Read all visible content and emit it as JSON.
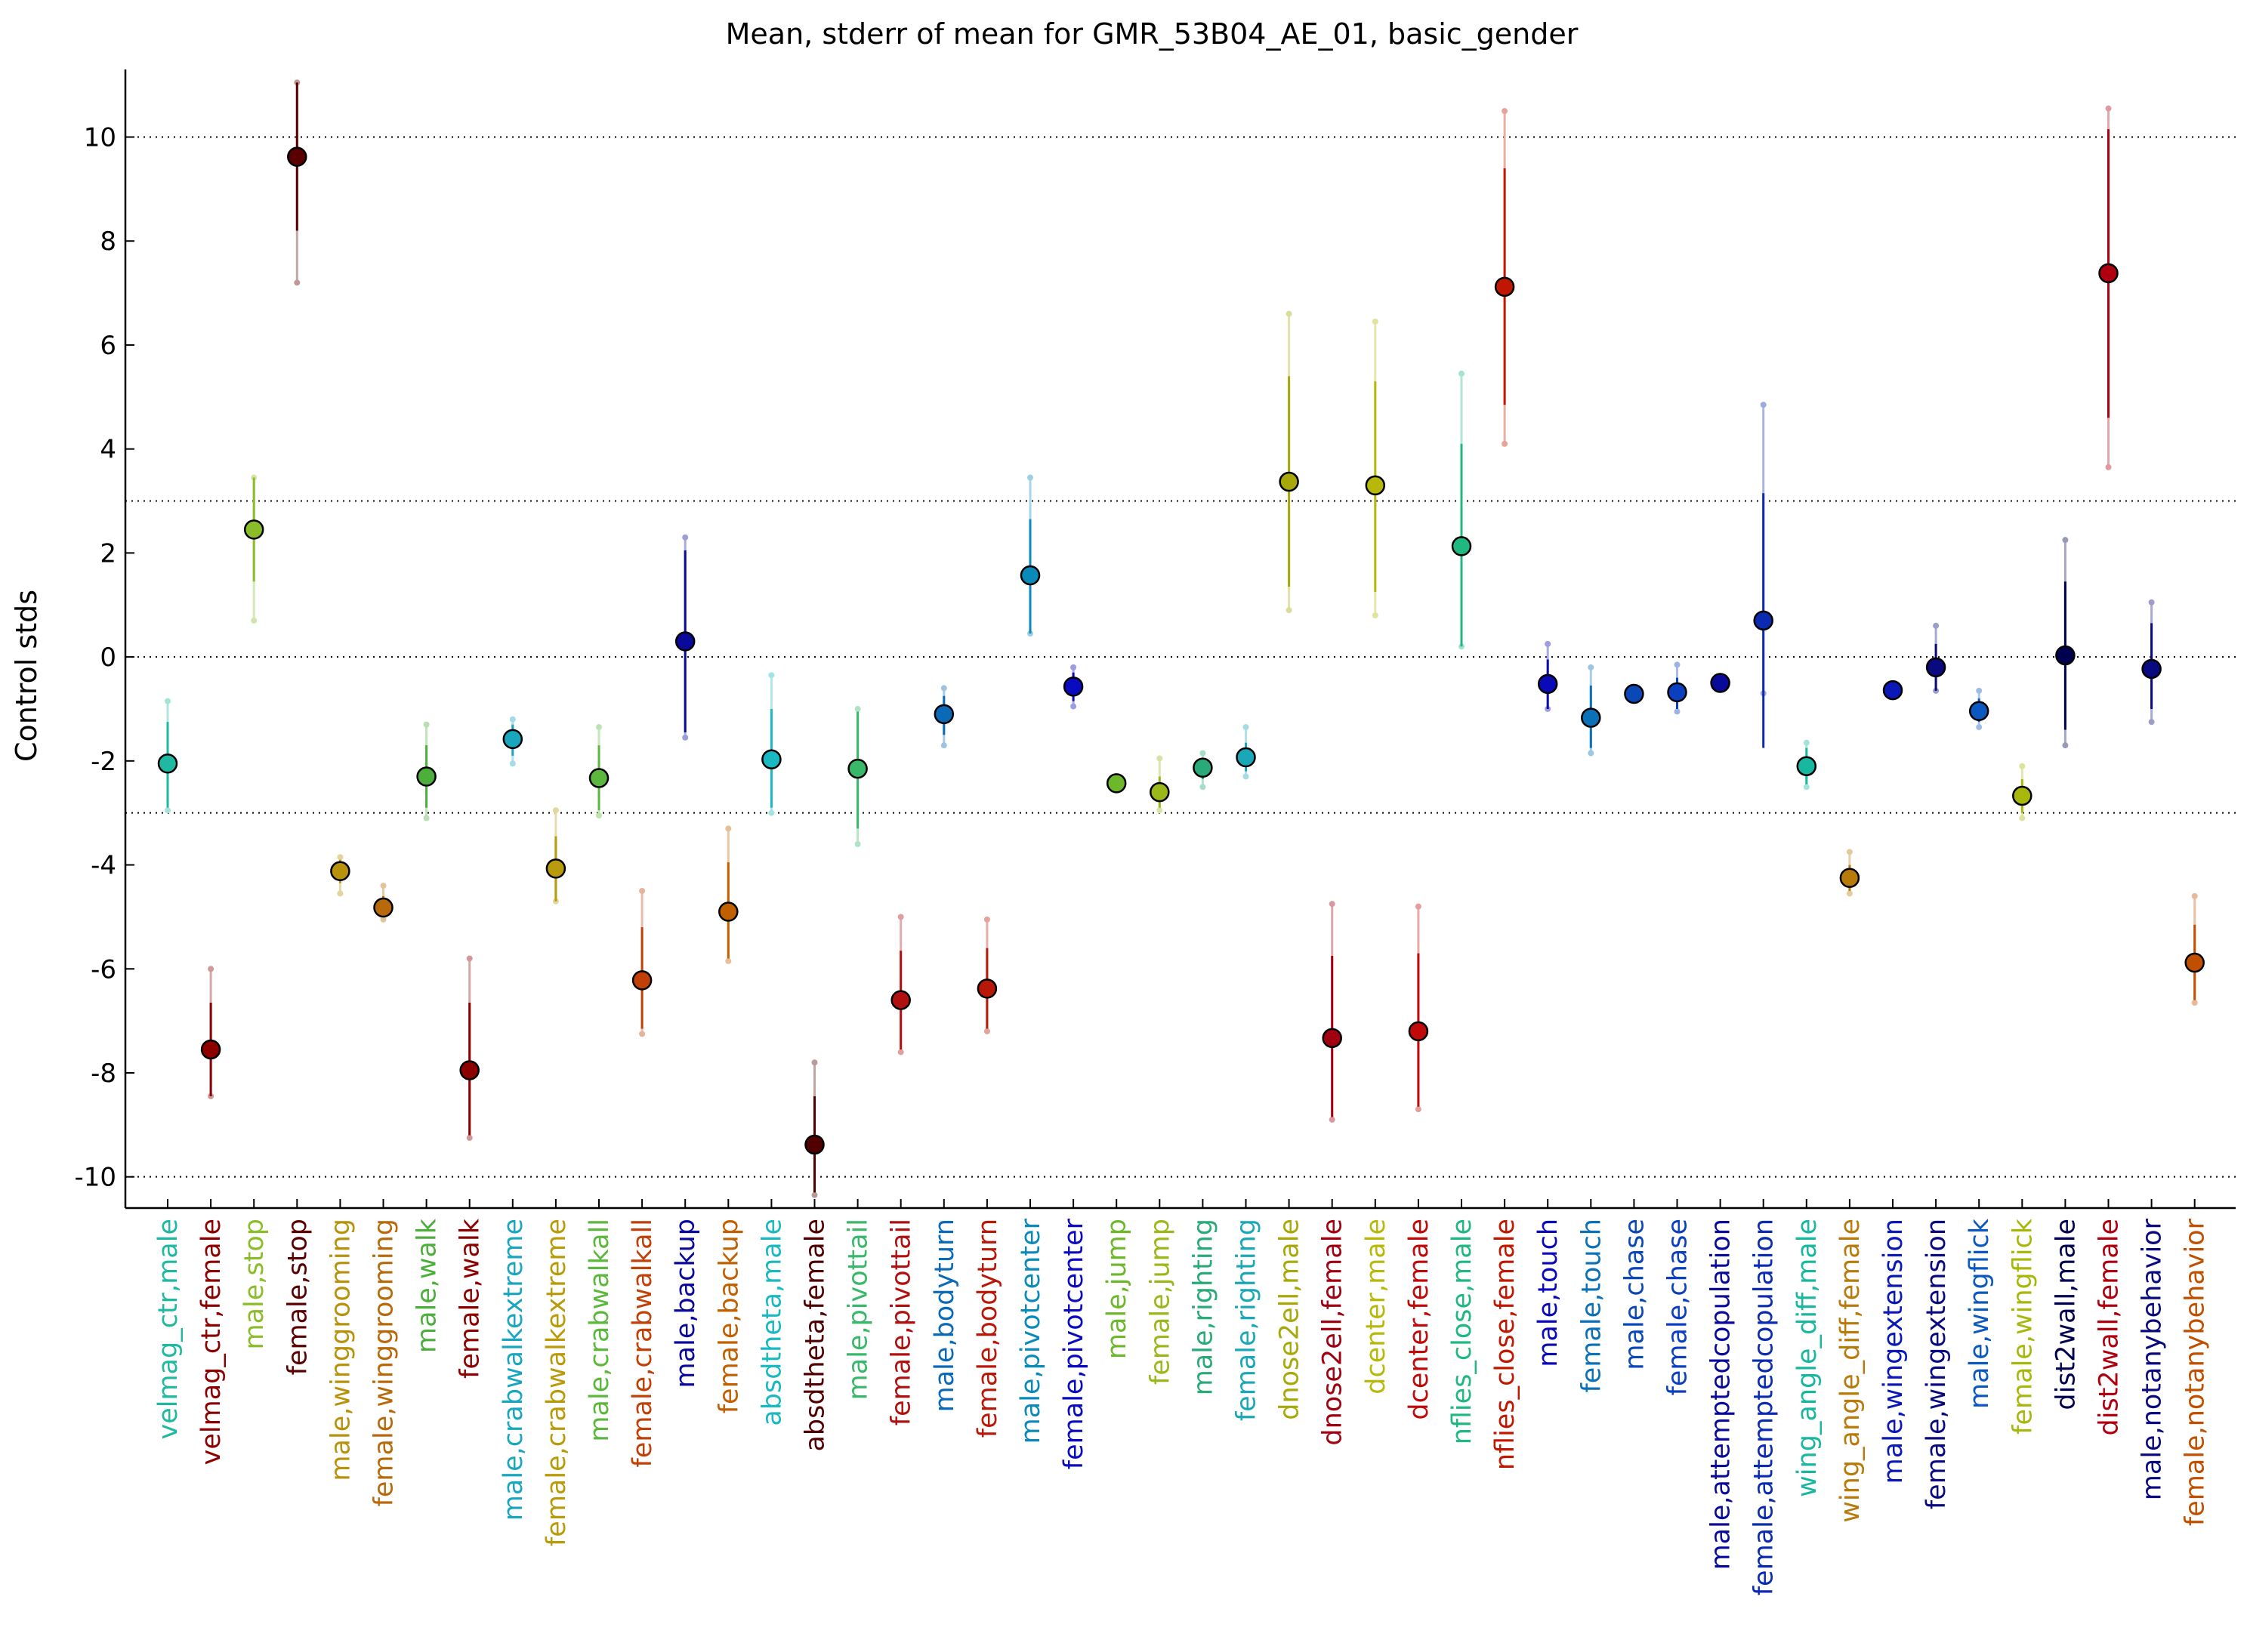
{
  "chart_data": {
    "type": "scatter",
    "title": "Mean, stderr of mean for GMR_53B04_AE_01, basic_gender",
    "xlabel": "",
    "ylabel": "Control stds",
    "ylim": [
      -10.6,
      11.3
    ],
    "yticks": [
      -10,
      -8,
      -6,
      -4,
      -2,
      0,
      2,
      4,
      6,
      8,
      10
    ],
    "ytick_labels": [
      "-10",
      "-8",
      "-6",
      "-4",
      "-2",
      "0",
      "2",
      "4",
      "6",
      "8",
      "10"
    ],
    "reference_lines": [
      -10,
      -3,
      0,
      3,
      10
    ],
    "grid": false,
    "legend": "none",
    "series": [
      {
        "label": "velmag_ctr,male",
        "mean": -2.05,
        "se_low": -2.9,
        "se_high": -1.25,
        "range": [
          -2.95,
          -0.85
        ],
        "color": "#1fb8a0"
      },
      {
        "label": "velmag_ctr,female",
        "mean": -7.55,
        "se_low": -8.45,
        "se_high": -6.65,
        "range": [
          -8.45,
          -6.0
        ],
        "color": "#8c0000"
      },
      {
        "label": "male,stop",
        "mean": 2.45,
        "se_low": 1.45,
        "se_high": 3.45,
        "range": [
          0.7,
          3.45
        ],
        "color": "#8bbd2a"
      },
      {
        "label": "female,stop",
        "mean": 9.62,
        "se_low": 8.2,
        "se_high": 11.05,
        "range": [
          7.2,
          11.05
        ],
        "color": "#5a0000"
      },
      {
        "label": "male,winggrooming",
        "mean": -4.12,
        "se_low": -4.35,
        "se_high": -3.9,
        "range": [
          -4.55,
          -3.85
        ],
        "color": "#b8920a"
      },
      {
        "label": "female,winggrooming",
        "mean": -4.82,
        "se_low": -5.0,
        "se_high": -4.6,
        "range": [
          -5.05,
          -4.4
        ],
        "color": "#b86a0a"
      },
      {
        "label": "male,walk",
        "mean": -2.3,
        "se_low": -2.9,
        "se_high": -1.7,
        "range": [
          -3.1,
          -1.3
        ],
        "color": "#4caf3c"
      },
      {
        "label": "female,walk",
        "mean": -7.95,
        "se_low": -9.2,
        "se_high": -6.65,
        "range": [
          -9.25,
          -5.8
        ],
        "color": "#8c0000"
      },
      {
        "label": "male,crabwalkextreme",
        "mean": -1.58,
        "se_low": -1.9,
        "se_high": -1.3,
        "range": [
          -2.05,
          -1.2
        ],
        "color": "#1ba6c0"
      },
      {
        "label": "female,crabwalkextreme",
        "mean": -4.07,
        "se_low": -4.7,
        "se_high": -3.45,
        "range": [
          -4.7,
          -2.95
        ],
        "color": "#b89a0a"
      },
      {
        "label": "male,crabwalkall",
        "mean": -2.33,
        "se_low": -2.95,
        "se_high": -1.7,
        "range": [
          -3.05,
          -1.35
        ],
        "color": "#5cb83c"
      },
      {
        "label": "female,crabwalkall",
        "mean": -6.22,
        "se_low": -7.15,
        "se_high": -5.2,
        "range": [
          -7.25,
          -4.5
        ],
        "color": "#c04008"
      },
      {
        "label": "male,backup",
        "mean": 0.3,
        "se_low": -1.45,
        "se_high": 2.05,
        "range": [
          -1.55,
          2.3
        ],
        "color": "#0a0a9a"
      },
      {
        "label": "female,backup",
        "mean": -4.9,
        "se_low": -5.8,
        "se_high": -3.95,
        "range": [
          -5.85,
          -3.3
        ],
        "color": "#c06000"
      },
      {
        "label": "absdtheta,male",
        "mean": -1.97,
        "se_low": -2.9,
        "se_high": -1.0,
        "range": [
          -3.0,
          -0.35
        ],
        "color": "#1ab8c0"
      },
      {
        "label": "absdtheta,female",
        "mean": -9.38,
        "se_low": -10.3,
        "se_high": -8.45,
        "range": [
          -10.35,
          -7.8
        ],
        "color": "#500000"
      },
      {
        "label": "male,pivottail",
        "mean": -2.15,
        "se_low": -3.3,
        "se_high": -1.05,
        "range": [
          -3.6,
          -1.0
        ],
        "color": "#38b868"
      },
      {
        "label": "female,pivottail",
        "mean": -6.6,
        "se_low": -7.55,
        "se_high": -5.65,
        "range": [
          -7.6,
          -5.0
        ],
        "color": "#b01010"
      },
      {
        "label": "male,bodyturn",
        "mean": -1.1,
        "se_low": -1.5,
        "se_high": -0.75,
        "range": [
          -1.7,
          -0.6
        ],
        "color": "#0a6ab8"
      },
      {
        "label": "female,bodyturn",
        "mean": -6.38,
        "se_low": -7.15,
        "se_high": -5.6,
        "range": [
          -7.2,
          -5.05
        ],
        "color": "#b81808"
      },
      {
        "label": "male,pivotcenter",
        "mean": 1.57,
        "se_low": 0.45,
        "se_high": 2.65,
        "range": [
          0.45,
          3.45
        ],
        "color": "#0a8ab8"
      },
      {
        "label": "female,pivotcenter",
        "mean": -0.57,
        "se_low": -0.85,
        "se_high": -0.3,
        "range": [
          -0.95,
          -0.2
        ],
        "color": "#0a0ac0"
      },
      {
        "label": "male,jump",
        "mean": -2.43,
        "se_low": -2.5,
        "se_high": -2.35,
        "range": [
          -2.55,
          -2.3
        ],
        "color": "#6cb82a"
      },
      {
        "label": "female,jump",
        "mean": -2.6,
        "se_low": -2.9,
        "se_high": -2.3,
        "range": [
          -2.95,
          -1.95
        ],
        "color": "#9ab81a"
      },
      {
        "label": "male,righting",
        "mean": -2.13,
        "se_low": -2.35,
        "se_high": -1.95,
        "range": [
          -2.5,
          -1.85
        ],
        "color": "#2aaa78"
      },
      {
        "label": "female,righting",
        "mean": -1.93,
        "se_low": -2.2,
        "se_high": -1.65,
        "range": [
          -2.3,
          -1.35
        ],
        "color": "#1aa8b8"
      },
      {
        "label": "dnose2ell,male",
        "mean": 3.37,
        "se_low": 1.35,
        "se_high": 5.4,
        "range": [
          0.9,
          6.6
        ],
        "color": "#a8a80a"
      },
      {
        "label": "dnose2ell,female",
        "mean": -7.33,
        "se_low": -8.85,
        "se_high": -5.75,
        "range": [
          -8.9,
          -4.75
        ],
        "color": "#a00010"
      },
      {
        "label": "dcenter,male",
        "mean": 3.3,
        "se_low": 1.25,
        "se_high": 5.3,
        "range": [
          0.8,
          6.45
        ],
        "color": "#b8b80a"
      },
      {
        "label": "dcenter,female",
        "mean": -7.2,
        "se_low": -8.65,
        "se_high": -5.7,
        "range": [
          -8.7,
          -4.8
        ],
        "color": "#c00a0a"
      },
      {
        "label": "nflies_close,male",
        "mean": 2.13,
        "se_low": 0.2,
        "se_high": 4.1,
        "range": [
          0.2,
          5.45
        ],
        "color": "#20b880"
      },
      {
        "label": "nflies_close,female",
        "mean": 7.12,
        "se_low": 4.85,
        "se_high": 9.4,
        "range": [
          4.1,
          10.5
        ],
        "color": "#c01800"
      },
      {
        "label": "male,touch",
        "mean": -0.52,
        "se_low": -1.0,
        "se_high": -0.05,
        "range": [
          -1.0,
          0.25
        ],
        "color": "#0a0ab8"
      },
      {
        "label": "female,touch",
        "mean": -1.17,
        "se_low": -1.75,
        "se_high": -0.55,
        "range": [
          -1.85,
          -0.2
        ],
        "color": "#0a70b8"
      },
      {
        "label": "male,chase",
        "mean": -0.71,
        "se_low": -0.78,
        "se_high": -0.64,
        "range": [
          -0.8,
          -0.6
        ],
        "color": "#0a48b8"
      },
      {
        "label": "female,chase",
        "mean": -0.68,
        "se_low": -1.0,
        "se_high": -0.4,
        "range": [
          -1.05,
          -0.15
        ],
        "color": "#0a40c0"
      },
      {
        "label": "male,attemptedcopulation",
        "mean": -0.5,
        "se_low": -0.57,
        "se_high": -0.43,
        "range": [
          -0.6,
          -0.4
        ],
        "color": "#0a0a9a"
      },
      {
        "label": "female,attemptedcopulation",
        "mean": 0.7,
        "se_low": -1.75,
        "se_high": 3.15,
        "range": [
          -0.7,
          4.85
        ],
        "color": "#0a2ab0"
      },
      {
        "label": "wing_angle_diff,male",
        "mean": -2.1,
        "se_low": -2.45,
        "se_high": -1.75,
        "range": [
          -2.5,
          -1.65
        ],
        "color": "#18b8a0"
      },
      {
        "label": "wing_angle_diff,female",
        "mean": -4.25,
        "se_low": -4.5,
        "se_high": -4.0,
        "range": [
          -4.55,
          -3.75
        ],
        "color": "#b87a0a"
      },
      {
        "label": "male,wingextension",
        "mean": -0.64,
        "se_low": -0.7,
        "se_high": -0.58,
        "range": [
          -0.72,
          -0.55
        ],
        "color": "#0a18b8"
      },
      {
        "label": "female,wingextension",
        "mean": -0.2,
        "se_low": -0.65,
        "se_high": 0.25,
        "range": [
          -0.65,
          0.6
        ],
        "color": "#0a0a80"
      },
      {
        "label": "male,wingflick",
        "mean": -1.04,
        "se_low": -1.25,
        "se_high": -0.8,
        "range": [
          -1.35,
          -0.65
        ],
        "color": "#0a58c0"
      },
      {
        "label": "female,wingflick",
        "mean": -2.67,
        "se_low": -3.0,
        "se_high": -2.35,
        "range": [
          -3.1,
          -2.1
        ],
        "color": "#a8b80a"
      },
      {
        "label": "dist2wall,male",
        "mean": 0.03,
        "se_low": -1.4,
        "se_high": 1.45,
        "range": [
          -1.7,
          2.25
        ],
        "color": "#000050"
      },
      {
        "label": "dist2wall,female",
        "mean": 7.38,
        "se_low": 4.6,
        "se_high": 10.15,
        "range": [
          3.65,
          10.55
        ],
        "color": "#b00010"
      },
      {
        "label": "male,notanybehavior",
        "mean": -0.23,
        "se_low": -1.0,
        "se_high": 0.65,
        "range": [
          -1.25,
          1.05
        ],
        "color": "#0a0a80"
      },
      {
        "label": "female,notanybehavior",
        "mean": -5.88,
        "se_low": -6.6,
        "se_high": -5.15,
        "range": [
          -6.65,
          -4.6
        ],
        "color": "#c05000"
      }
    ]
  }
}
